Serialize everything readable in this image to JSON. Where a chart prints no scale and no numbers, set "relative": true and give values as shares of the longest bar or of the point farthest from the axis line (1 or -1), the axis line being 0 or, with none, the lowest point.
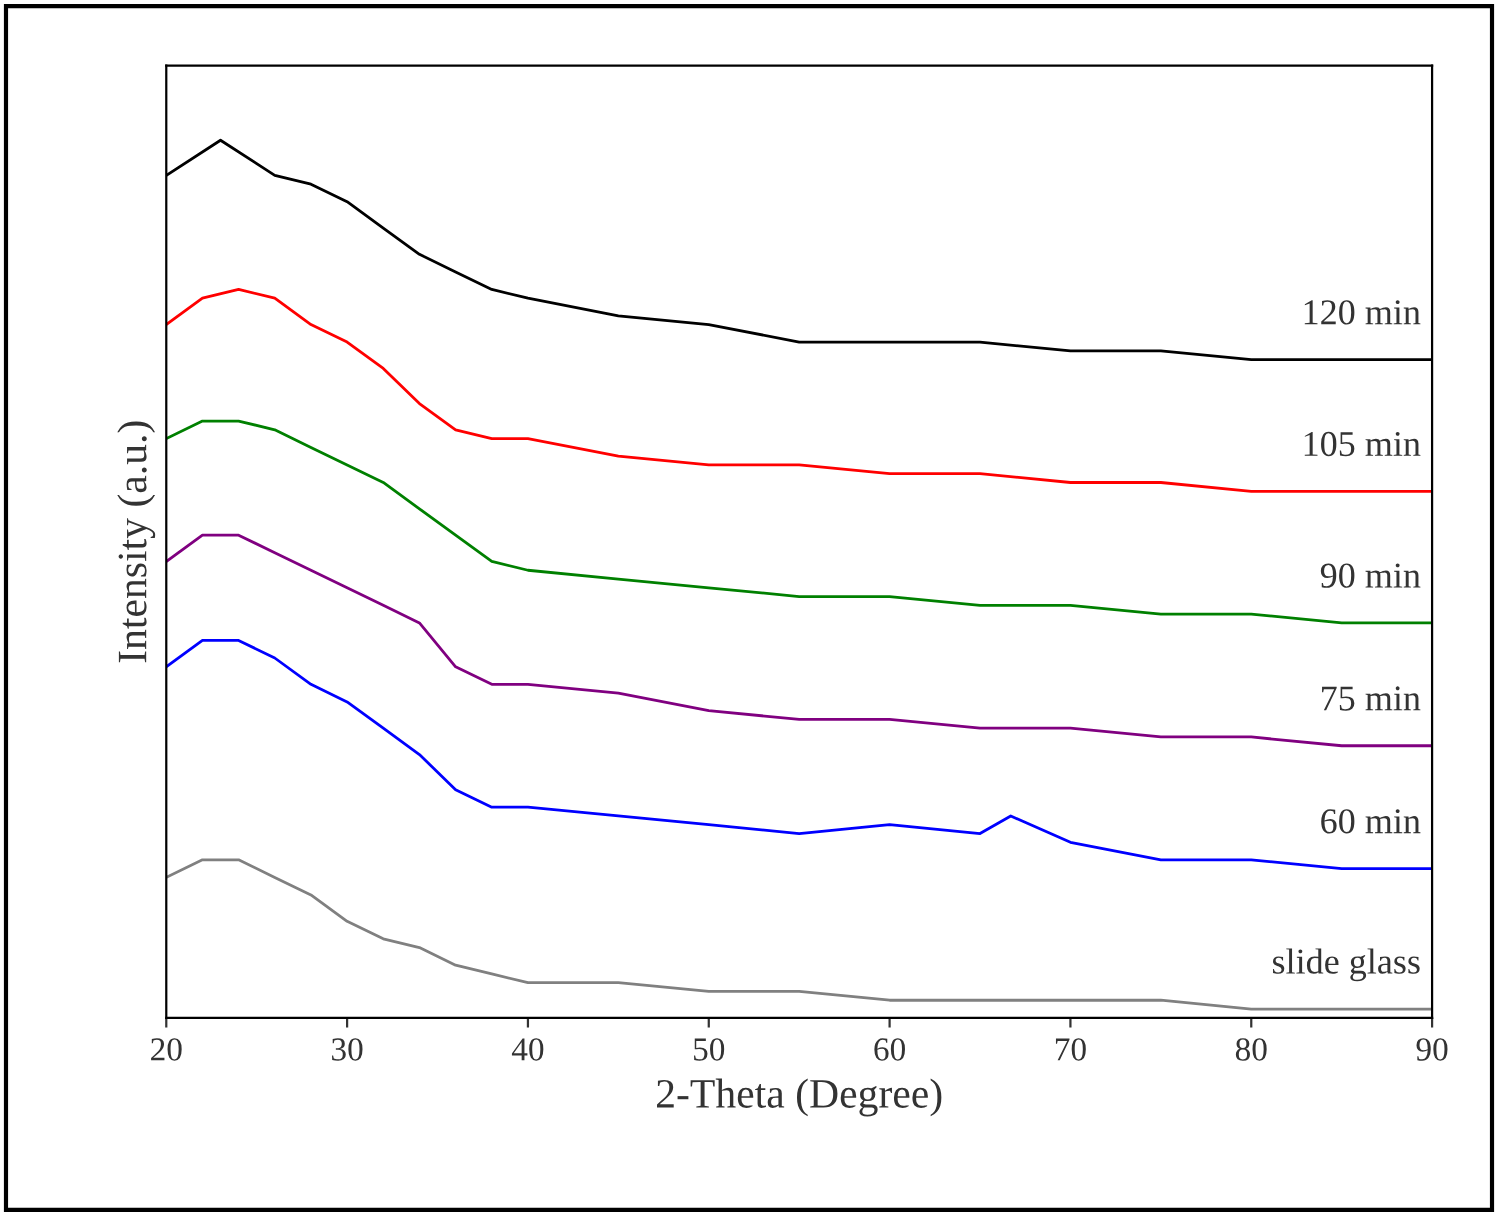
{
  "chart_data": {
    "type": "line",
    "relative": true,
    "xlabel": "2-Theta (Degree)",
    "ylabel": "Intensity (a.u.)",
    "xlim": [
      20,
      90
    ],
    "xticks": [
      20,
      30,
      40,
      50,
      60,
      70,
      80,
      90
    ],
    "grid": false,
    "legend": false,
    "marker": "none",
    "line_style": "solid",
    "x": [
      20,
      22,
      24,
      26,
      28,
      30,
      32,
      34,
      36,
      38,
      40,
      45,
      50,
      55,
      60,
      65,
      70,
      75,
      80,
      85,
      90
    ],
    "series": [
      {
        "name": "120 min",
        "color": "#000000",
        "x": [
          20,
          23,
          26,
          28,
          30,
          32,
          34,
          36,
          38,
          40,
          45,
          50,
          55,
          60,
          65,
          70,
          75,
          80,
          85,
          90
        ],
        "values": [
          0.96,
          1.0,
          0.96,
          0.95,
          0.93,
          0.9,
          0.87,
          0.85,
          0.83,
          0.82,
          0.8,
          0.79,
          0.77,
          0.77,
          0.77,
          0.76,
          0.76,
          0.75,
          0.75,
          0.75
        ]
      },
      {
        "name": "105 min",
        "color": "#ff0000",
        "values": [
          0.79,
          0.82,
          0.83,
          0.82,
          0.79,
          0.77,
          0.74,
          0.7,
          0.67,
          0.66,
          0.66,
          0.64,
          0.63,
          0.63,
          0.62,
          0.62,
          0.61,
          0.61,
          0.6,
          0.6,
          0.6
        ]
      },
      {
        "name": "90 min",
        "color": "#008000",
        "values": [
          0.66,
          0.68,
          0.68,
          0.67,
          0.65,
          0.63,
          0.61,
          0.58,
          0.55,
          0.52,
          0.51,
          0.5,
          0.49,
          0.48,
          0.48,
          0.47,
          0.47,
          0.46,
          0.46,
          0.45,
          0.45
        ]
      },
      {
        "name": "75 min",
        "color": "#800080",
        "values": [
          0.52,
          0.55,
          0.55,
          0.53,
          0.51,
          0.49,
          0.47,
          0.45,
          0.4,
          0.38,
          0.38,
          0.37,
          0.35,
          0.34,
          0.34,
          0.33,
          0.33,
          0.32,
          0.32,
          0.31,
          0.31
        ]
      },
      {
        "name": "60 min",
        "color": "#0000ff",
        "x": [
          20,
          22,
          24,
          26,
          28,
          30,
          32,
          34,
          36,
          38,
          40,
          45,
          50,
          55,
          60,
          65,
          66.7,
          70,
          75,
          80,
          85,
          90
        ],
        "values": [
          0.4,
          0.43,
          0.43,
          0.41,
          0.38,
          0.36,
          0.33,
          0.3,
          0.26,
          0.24,
          0.24,
          0.23,
          0.22,
          0.21,
          0.22,
          0.21,
          0.23,
          0.2,
          0.18,
          0.18,
          0.17,
          0.17
        ]
      },
      {
        "name": "slide glass",
        "color": "#808080",
        "values": [
          0.16,
          0.18,
          0.18,
          0.16,
          0.14,
          0.11,
          0.09,
          0.08,
          0.06,
          0.05,
          0.04,
          0.04,
          0.03,
          0.03,
          0.02,
          0.02,
          0.02,
          0.02,
          0.01,
          0.01,
          0.01
        ]
      }
    ]
  }
}
